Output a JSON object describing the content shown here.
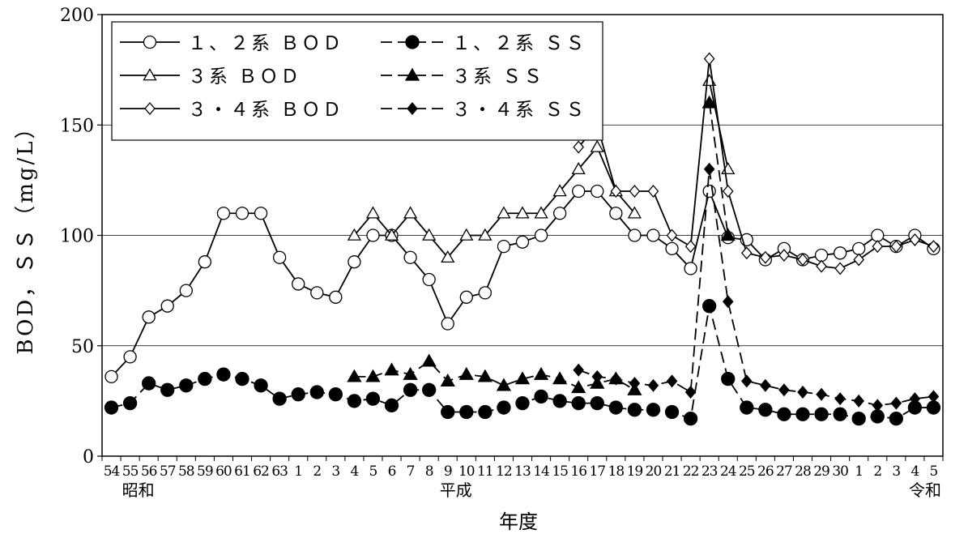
{
  "chart_data": {
    "type": "line",
    "title": "",
    "ylabel": "BOD，ＳＳ（mg/L）",
    "xlabel": "年度",
    "ylim": [
      0,
      200
    ],
    "yticks": [
      0,
      50,
      100,
      150,
      200
    ],
    "gridlines": [
      50,
      100,
      150
    ],
    "x": [
      "54",
      "55",
      "56",
      "57",
      "58",
      "59",
      "60",
      "61",
      "62",
      "63",
      "1",
      "2",
      "3",
      "4",
      "5",
      "6",
      "7",
      "8",
      "9",
      "10",
      "11",
      "12",
      "13",
      "14",
      "15",
      "16",
      "17",
      "18",
      "19",
      "20",
      "21",
      "22",
      "23",
      "24",
      "25",
      "26",
      "27",
      "28",
      "29",
      "30",
      "1",
      "2",
      "3",
      "4",
      "5"
    ],
    "eras": [
      {
        "label": "昭和",
        "index": 1
      },
      {
        "label": "平成",
        "index": 18
      },
      {
        "label": "令和",
        "index": 44
      }
    ],
    "legend_position": "top-left",
    "series": [
      {
        "name": "１、２系 ＢＯＤ",
        "marker": "circle-open",
        "dashed": false,
        "color": "#000000",
        "values": [
          36,
          45,
          63,
          68,
          75,
          88,
          110,
          110,
          110,
          90,
          78,
          74,
          72,
          88,
          100,
          100,
          90,
          80,
          60,
          72,
          74,
          95,
          97,
          100,
          110,
          120,
          120,
          110,
          100,
          100,
          94,
          85,
          120,
          99,
          98,
          89,
          94,
          89,
          91,
          92,
          94,
          100,
          95,
          100,
          94
        ]
      },
      {
        "name": "１、２系 ＳＳ",
        "marker": "circle-filled",
        "dashed": true,
        "color": "#000000",
        "values": [
          22,
          24,
          33,
          30,
          32,
          35,
          37,
          35,
          32,
          26,
          28,
          29,
          28,
          25,
          26,
          23,
          30,
          30,
          20,
          20,
          20,
          22,
          24,
          27,
          25,
          24,
          24,
          22,
          21,
          21,
          20,
          17,
          68,
          35,
          22,
          21,
          19,
          19,
          19,
          19,
          17,
          18,
          17,
          22,
          22
        ]
      },
      {
        "name": "３系 ＢＯＤ",
        "marker": "triangle-open",
        "dashed": false,
        "color": "#000000",
        "values": [
          null,
          null,
          null,
          null,
          null,
          null,
          null,
          null,
          null,
          null,
          null,
          null,
          null,
          100,
          110,
          100,
          110,
          100,
          90,
          100,
          100,
          110,
          110,
          110,
          120,
          130,
          140,
          120,
          110,
          null,
          null,
          null,
          170,
          130,
          null,
          null,
          null,
          null,
          null,
          null,
          null,
          null,
          null,
          null,
          null
        ]
      },
      {
        "name": "３系 ＳＳ",
        "marker": "triangle-filled",
        "dashed": true,
        "color": "#000000",
        "values": [
          null,
          null,
          null,
          null,
          null,
          null,
          null,
          null,
          null,
          null,
          null,
          null,
          null,
          36,
          36,
          39,
          37,
          43,
          34,
          37,
          36,
          32,
          35,
          37,
          35,
          31,
          33,
          35,
          30,
          null,
          null,
          null,
          160,
          100,
          null,
          null,
          null,
          null,
          null,
          null,
          null,
          null,
          null,
          null,
          null
        ]
      },
      {
        "name": "３・４系 ＢＯＤ",
        "marker": "diamond-open",
        "dashed": false,
        "color": "#000000",
        "values": [
          null,
          null,
          null,
          null,
          null,
          null,
          null,
          null,
          null,
          null,
          null,
          null,
          null,
          null,
          null,
          null,
          null,
          null,
          null,
          null,
          null,
          null,
          null,
          null,
          null,
          140,
          150,
          120,
          120,
          120,
          100,
          95,
          180,
          120,
          92,
          90,
          91,
          89,
          86,
          85,
          89,
          95,
          95,
          98,
          95
        ]
      },
      {
        "name": "３・４系 ＳＳ",
        "marker": "diamond-filled",
        "dashed": true,
        "color": "#000000",
        "values": [
          null,
          null,
          null,
          null,
          null,
          null,
          null,
          null,
          null,
          null,
          null,
          null,
          null,
          null,
          null,
          null,
          null,
          null,
          null,
          null,
          null,
          null,
          null,
          null,
          null,
          39,
          36,
          35,
          33,
          32,
          34,
          29,
          130,
          70,
          34,
          32,
          30,
          29,
          28,
          26,
          25,
          23,
          24,
          26,
          27
        ]
      }
    ]
  }
}
